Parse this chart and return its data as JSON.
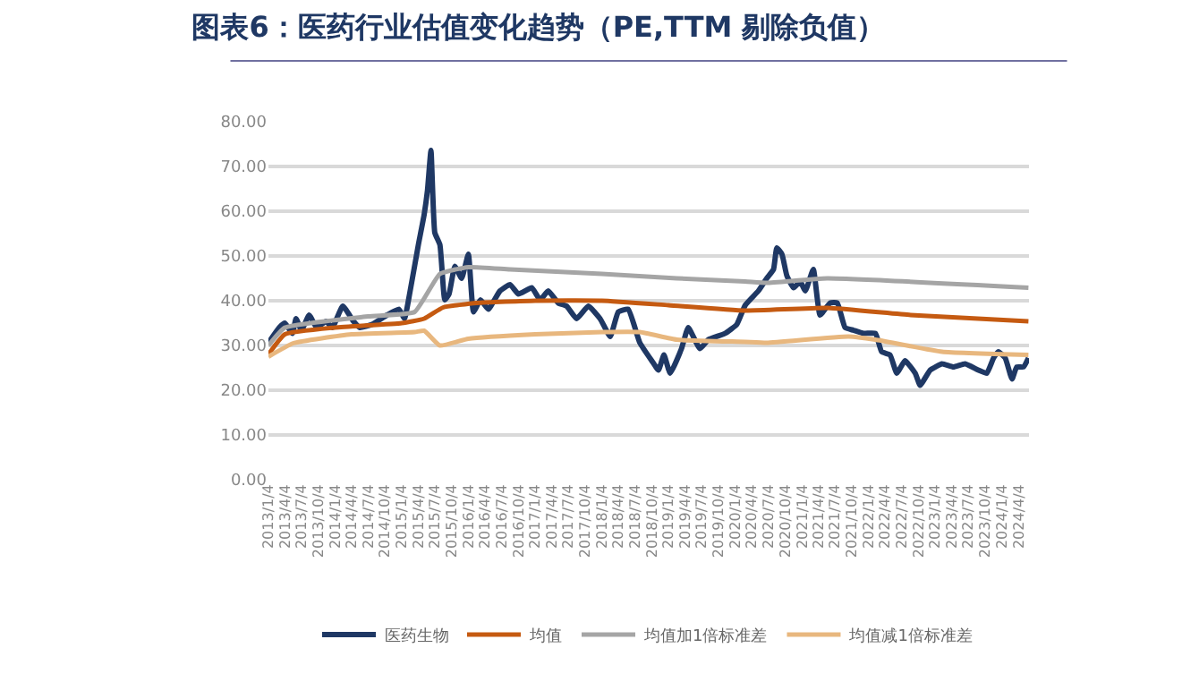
{
  "chart_data": {
    "type": "line",
    "title": "图表6：医药行业估值变化趋势（PE,TTM 剔除负值）",
    "series": [
      {
        "name": "医药生物",
        "color": "#1f3864",
        "x": [
          "2013-01-04",
          "2013-03-04",
          "2013-04-04",
          "2013-05-15",
          "2013-06-04",
          "2013-07-04",
          "2013-08-15",
          "2013-09-25",
          "2013-11-15",
          "2013-12-20",
          "2014-02-15",
          "2014-04-15",
          "2014-05-20",
          "2014-07-25",
          "2014-10-15",
          "2014-12-20",
          "2015-01-19",
          "2015-02-16",
          "2015-04-05",
          "2015-05-07",
          "2015-05-25",
          "2015-06-13",
          "2015-07-04",
          "2015-08-01",
          "2015-08-28",
          "2015-09-20",
          "2015-10-22",
          "2015-11-28",
          "2016-01-04",
          "2016-02-01",
          "2016-03-10",
          "2016-04-22",
          "2016-06-25",
          "2016-08-19",
          "2016-10-04",
          "2016-12-16",
          "2017-01-31",
          "2017-03-16",
          "2017-05-10",
          "2017-06-25",
          "2017-08-19",
          "2017-10-22",
          "2017-12-25",
          "2018-02-19",
          "2018-04-04",
          "2018-05-28",
          "2018-07-31",
          "2018-10-04",
          "2018-11-10",
          "2018-12-10",
          "2019-01-13",
          "2019-03-16",
          "2019-04-22",
          "2019-06-25",
          "2019-08-10",
          "2019-11-10",
          "2020-01-13",
          "2020-02-28",
          "2020-05-10",
          "2020-06-25",
          "2020-08-01",
          "2020-08-19",
          "2020-09-16",
          "2020-10-13",
          "2020-11-19",
          "2020-12-25",
          "2021-01-22",
          "2021-03-07",
          "2021-04-13",
          "2021-06-07",
          "2021-07-16",
          "2021-08-28",
          "2021-10-13",
          "2021-12-07",
          "2022-02-10",
          "2022-03-16",
          "2022-05-01",
          "2022-06-07",
          "2022-07-22",
          "2022-09-16",
          "2022-10-13",
          "2022-12-07",
          "2023-02-10",
          "2023-04-13",
          "2023-06-16",
          "2023-08-28",
          "2023-10-13",
          "2023-11-19",
          "2023-12-16",
          "2024-01-22",
          "2024-02-28",
          "2024-03-25",
          "2024-05-01",
          "2024-05-28"
        ],
        "values": [
          30.6,
          34,
          35,
          32.7,
          36,
          33.4,
          36.8,
          34,
          35.4,
          34,
          38.8,
          35.4,
          34,
          34.7,
          36.8,
          38.1,
          36,
          41.5,
          52.5,
          59.3,
          64.7,
          73.6,
          55.2,
          52.5,
          40.2,
          41.5,
          47.7,
          45,
          50.4,
          37.5,
          40.2,
          38.1,
          42.2,
          43.6,
          41.5,
          42.9,
          40.2,
          42.2,
          39.5,
          38.8,
          36,
          38.8,
          36,
          32,
          37.5,
          38.1,
          30.6,
          26.6,
          24.5,
          27.9,
          23.8,
          29.3,
          34,
          29.3,
          31.3,
          32.7,
          34.7,
          39,
          42.2,
          45,
          47,
          51.8,
          50.4,
          45.6,
          42.9,
          44.3,
          42.2,
          47,
          36.8,
          39.5,
          39.5,
          34,
          33.4,
          32.7,
          32.7,
          28.6,
          27.9,
          23.8,
          26.6,
          23.8,
          21.1,
          24.5,
          25.9,
          25.2,
          25.9,
          24.5,
          23.8,
          27.2,
          28.6,
          27.2,
          22.5,
          25.2,
          25.2,
          27.2
        ]
      },
      {
        "name": "均值",
        "color": "#c55a11",
        "x": [
          "2013-01-04",
          "2013-04-04",
          "2014-01-04",
          "2015-01-04",
          "2015-05-07",
          "2015-08-19",
          "2016-02-19",
          "2017-01-04",
          "2018-01-04",
          "2019-01-04",
          "2020-02-28",
          "2021-05-22",
          "2022-08-22",
          "2024-05-28"
        ],
        "values": [
          28,
          32.5,
          34,
          35,
          36,
          38.5,
          39.5,
          40,
          40,
          39,
          37.8,
          38.4,
          36.8,
          35.4
        ]
      },
      {
        "name": "均值加1倍标准差",
        "color": "#a5a5a5",
        "x": [
          "2013-01-04",
          "2013-04-04",
          "2014-07-04",
          "2015-03-16",
          "2015-08-01",
          "2016-01-04",
          "2016-08-19",
          "2018-01-04",
          "2019-02-19",
          "2020-02-28",
          "2020-06-25",
          "2021-05-22",
          "2024-05-28"
        ],
        "values": [
          30,
          34,
          36.5,
          37.5,
          46,
          47.5,
          47,
          46,
          45,
          44.3,
          44,
          45,
          42.9
        ]
      },
      {
        "name": "均值减1倍标准差",
        "color": "#e8b77e",
        "x": [
          "2013-01-04",
          "2013-05-20",
          "2014-04-04",
          "2015-03-16",
          "2015-05-07",
          "2015-08-01",
          "2016-01-04",
          "2017-01-04",
          "2018-01-04",
          "2018-07-31",
          "2019-02-19",
          "2020-02-28",
          "2020-06-25",
          "2021-09-16",
          "2022-02-10",
          "2023-02-10",
          "2024-05-28"
        ],
        "values": [
          27.5,
          30.5,
          32.5,
          33,
          33.3,
          30,
          31.5,
          32.5,
          33,
          33,
          31.3,
          30.8,
          30.6,
          32,
          31.3,
          28.6,
          27.9
        ]
      }
    ],
    "xlim": [
      "2013-01-04",
      "2024-05-31"
    ],
    "xticks": [
      {
        "value": "2013-01-04",
        "label": "2013/1/4"
      },
      {
        "value": "2013-04-04",
        "label": "2013/4/4"
      },
      {
        "value": "2013-07-04",
        "label": "2013/7/4"
      },
      {
        "value": "2013-10-04",
        "label": "2013/10/4"
      },
      {
        "value": "2014-01-04",
        "label": "2014/1/4"
      },
      {
        "value": "2014-04-04",
        "label": "2014/4/4"
      },
      {
        "value": "2014-07-04",
        "label": "2014/7/4"
      },
      {
        "value": "2014-10-04",
        "label": "2014/10/4"
      },
      {
        "value": "2015-01-04",
        "label": "2015/1/4"
      },
      {
        "value": "2015-04-04",
        "label": "2015/4/4"
      },
      {
        "value": "2015-07-04",
        "label": "2015/7/4"
      },
      {
        "value": "2015-10-04",
        "label": "2015/10/4"
      },
      {
        "value": "2016-01-04",
        "label": "2016/1/4"
      },
      {
        "value": "2016-04-04",
        "label": "2016/4/4"
      },
      {
        "value": "2016-07-04",
        "label": "2016/7/4"
      },
      {
        "value": "2016-10-04",
        "label": "2016/10/4"
      },
      {
        "value": "2017-01-04",
        "label": "2017/1/4"
      },
      {
        "value": "2017-04-04",
        "label": "2017/4/4"
      },
      {
        "value": "2017-07-04",
        "label": "2017/7/4"
      },
      {
        "value": "2017-10-04",
        "label": "2017/10/4"
      },
      {
        "value": "2018-01-04",
        "label": "2018/1/4"
      },
      {
        "value": "2018-04-04",
        "label": "2018/4/4"
      },
      {
        "value": "2018-07-04",
        "label": "2018/7/4"
      },
      {
        "value": "2018-10-04",
        "label": "2018/10/4"
      },
      {
        "value": "2019-01-04",
        "label": "2019/1/4"
      },
      {
        "value": "2019-04-04",
        "label": "2019/4/4"
      },
      {
        "value": "2019-07-04",
        "label": "2019/7/4"
      },
      {
        "value": "2019-10-04",
        "label": "2019/10/4"
      },
      {
        "value": "2020-01-04",
        "label": "2020/1/4"
      },
      {
        "value": "2020-04-04",
        "label": "2020/4/4"
      },
      {
        "value": "2020-07-04",
        "label": "2020/7/4"
      },
      {
        "value": "2020-10-04",
        "label": "2020/10/4"
      },
      {
        "value": "2021-01-04",
        "label": "2021/1/4"
      },
      {
        "value": "2021-04-04",
        "label": "2021/4/4"
      },
      {
        "value": "2021-07-04",
        "label": "2021/7/4"
      },
      {
        "value": "2021-10-04",
        "label": "2021/10/4"
      },
      {
        "value": "2022-01-04",
        "label": "2022/1/4"
      },
      {
        "value": "2022-04-04",
        "label": "2022/4/4"
      },
      {
        "value": "2022-07-04",
        "label": "2022/7/4"
      },
      {
        "value": "2022-10-04",
        "label": "2022/10/4"
      },
      {
        "value": "2023-01-04",
        "label": "2023/1/4"
      },
      {
        "value": "2023-04-04",
        "label": "2023/4/4"
      },
      {
        "value": "2023-07-04",
        "label": "2023/7/4"
      },
      {
        "value": "2023-10-04",
        "label": "2023/10/4"
      },
      {
        "value": "2024-01-04",
        "label": "2024/1/4"
      },
      {
        "value": "2024-04-04",
        "label": "2024/4/4"
      }
    ],
    "ylim": [
      0,
      80
    ],
    "yticks": [
      {
        "value": 0,
        "label": "0.00"
      },
      {
        "value": 10,
        "label": "10.00"
      },
      {
        "value": 20,
        "label": "20.00"
      },
      {
        "value": 30,
        "label": "30.00"
      },
      {
        "value": 40,
        "label": "40.00"
      },
      {
        "value": 50,
        "label": "50.00"
      },
      {
        "value": 60,
        "label": "60.00"
      },
      {
        "value": 70,
        "label": "70.00"
      },
      {
        "value": 80,
        "label": "80.00"
      }
    ],
    "grid": "y",
    "legend": "bottom",
    "marker": "none",
    "line_style": "solid"
  }
}
